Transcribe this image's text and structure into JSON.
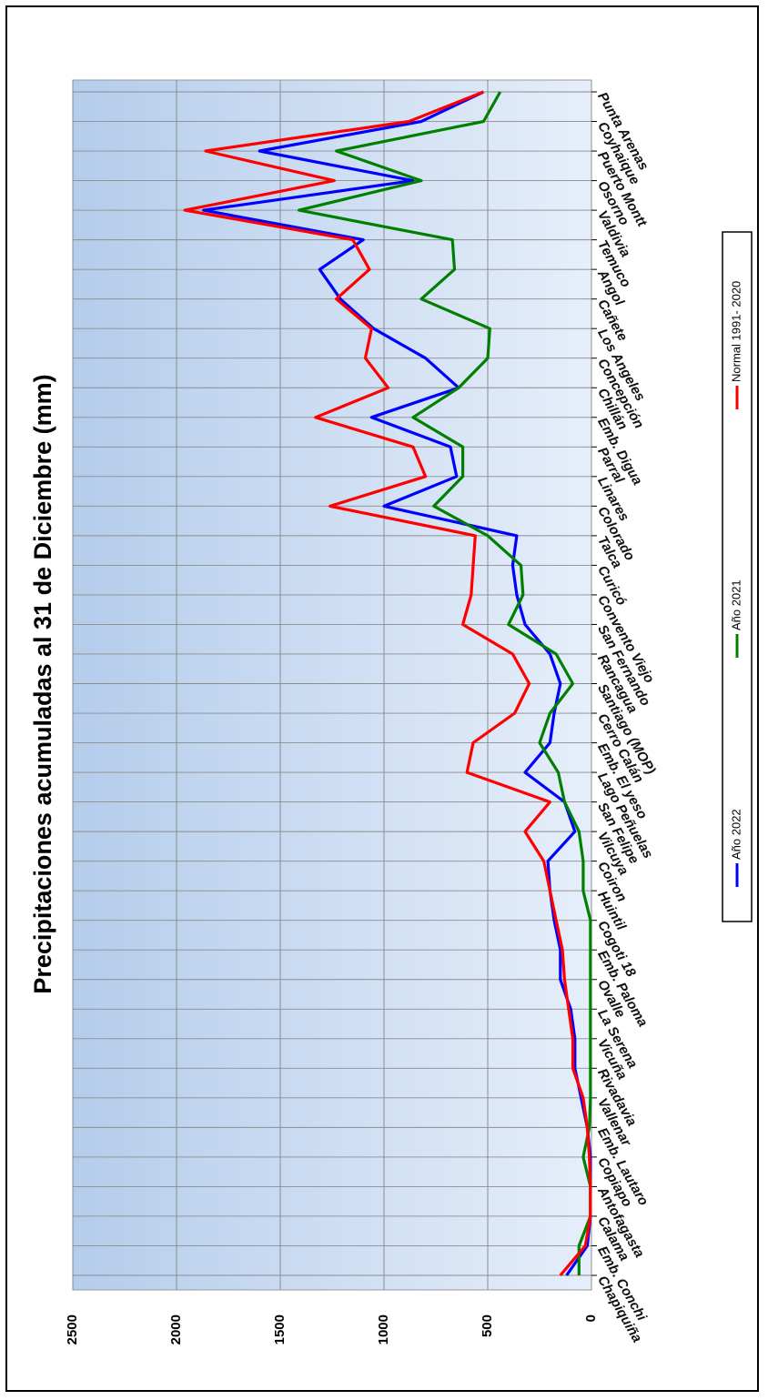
{
  "chart_data": {
    "type": "line",
    "title": "Precipitaciones acumuladas al 31 de Diciembre (mm)",
    "xlabel": "",
    "ylabel": "",
    "ylim": [
      0,
      2500
    ],
    "yticks": [
      "0",
      "500",
      "1000",
      "1500",
      "2000",
      "2500"
    ],
    "grid": true,
    "legend_position": "right",
    "categories": [
      "Chapiquiña",
      "Emb. Conchi",
      "Calama",
      "Antofagasta",
      "Copiapo",
      "Emb. Lautaro",
      "Vallenar",
      "Rivadavia",
      "Vicuña",
      "La Serena",
      "Ovalle",
      "Emb. Paloma",
      "Cogoti 18",
      "Huintil",
      "Coiron",
      "Vilcuya",
      "San Felipe",
      "Lago Peñuelas",
      "Emb. El yeso",
      "Cerro Calán",
      "Santiago (MOP)",
      "Rancagua",
      "San Fernando",
      "Convento Viejo",
      "Curicó",
      "Talca",
      "Colorado",
      "Linares",
      "Parral",
      "Emb. Digua",
      "Chillán",
      "Concepción",
      "Los Angeles",
      "Cañete",
      "Angol",
      "Temuco",
      "Valdivia",
      "Osorno",
      "Puerto Montt",
      "Coyhaique",
      "Punta Arenas"
    ],
    "series": [
      {
        "name": "Año 2022",
        "color": "#0000ff",
        "values": [
          120,
          20,
          5,
          5,
          5,
          20,
          50,
          80,
          80,
          100,
          150,
          150,
          180,
          200,
          210,
          80,
          130,
          320,
          200,
          180,
          150,
          200,
          320,
          360,
          380,
          360,
          1000,
          650,
          680,
          1060,
          640,
          800,
          1050,
          1210,
          1310,
          1100,
          1870,
          860,
          1600,
          820,
          520
        ]
      },
      {
        "name": "Año 2021",
        "color": "#008000",
        "values": [
          60,
          60,
          5,
          5,
          40,
          10,
          5,
          5,
          5,
          5,
          5,
          5,
          5,
          40,
          40,
          60,
          130,
          160,
          250,
          200,
          90,
          170,
          400,
          330,
          340,
          500,
          760,
          620,
          620,
          860,
          640,
          500,
          490,
          820,
          660,
          670,
          1410,
          820,
          1230,
          520,
          440
        ]
      },
      {
        "name": "Normal 1991- 2020",
        "color": "#ff0000",
        "values": [
          150,
          30,
          5,
          5,
          10,
          20,
          40,
          90,
          90,
          110,
          130,
          140,
          170,
          200,
          230,
          320,
          200,
          600,
          570,
          370,
          300,
          380,
          620,
          580,
          570,
          560,
          1260,
          800,
          860,
          1330,
          980,
          1090,
          1060,
          1230,
          1070,
          1150,
          1960,
          1240,
          1860,
          880,
          520
        ]
      }
    ]
  }
}
